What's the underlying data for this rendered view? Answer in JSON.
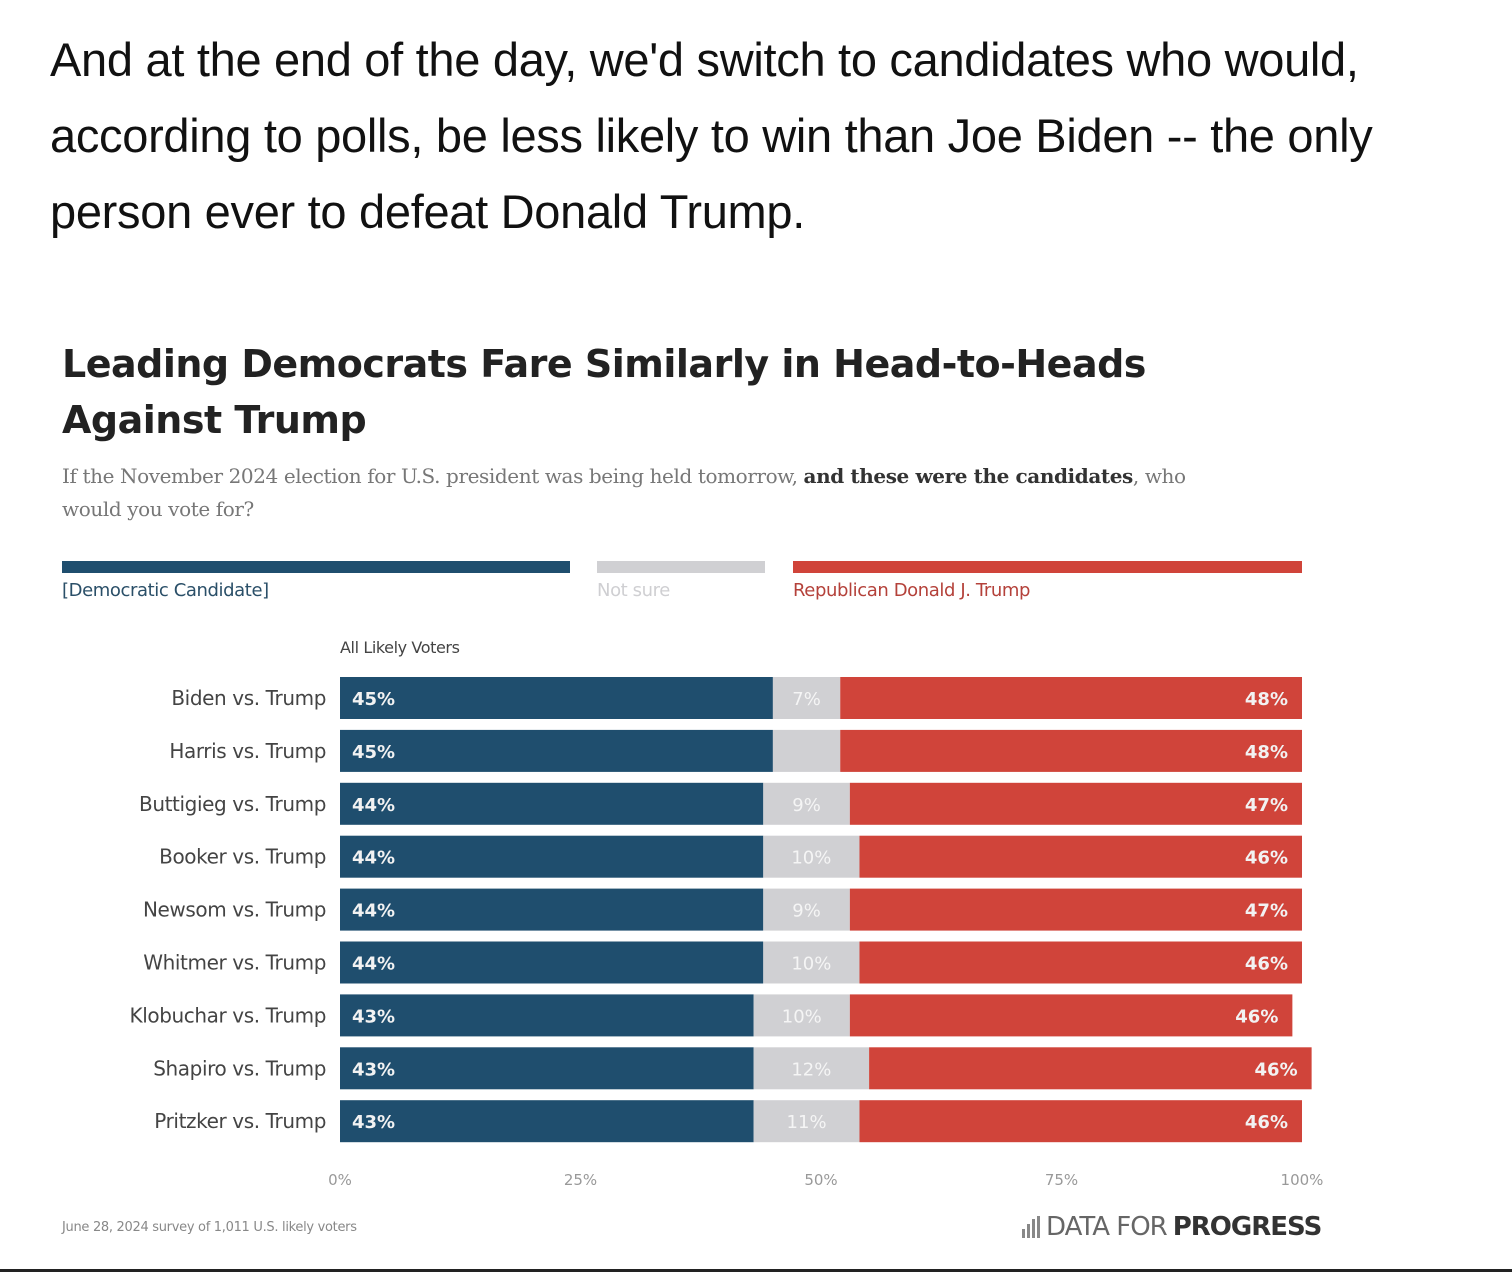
{
  "intro_text": "And at the end of the day, we'd switch to candidates who would, according to polls, be less likely to win than Joe Biden -- the only person ever to defeat Donald Trump.",
  "colors": {
    "democrat": "#1f4e6e",
    "not_sure": "#d0d0d3",
    "republican": "#d0443a"
  },
  "chart_data": {
    "type": "bar",
    "orientation": "horizontal-stacked-100",
    "title": "Leading Democrats Fare Similarly in Head-to-Heads Against Trump",
    "subtitle_plain_1": "If the November 2024 election for U.S. president was being held tomorrow, ",
    "subtitle_bold_1": "and these were the candidates",
    "subtitle_plain_2": ", who would you vote for?",
    "group_label": "All Likely Voters",
    "legend": [
      "[Democratic Candidate]",
      "Not sure",
      "Republican Donald J. Trump"
    ],
    "legend_placement": "top",
    "categories": [
      "Biden vs. Trump",
      "Harris vs. Trump",
      "Buttigieg vs. Trump",
      "Booker vs. Trump",
      "Newsom vs. Trump",
      "Whitmer vs. Trump",
      "Klobuchar vs. Trump",
      "Shapiro vs. Trump",
      "Pritzker vs. Trump"
    ],
    "series": [
      {
        "name": "[Democratic Candidate]",
        "values": [
          45,
          45,
          44,
          44,
          44,
          44,
          43,
          43,
          43
        ],
        "labels": [
          "45%",
          "45%",
          "44%",
          "44%",
          "44%",
          "44%",
          "43%",
          "43%",
          "43%"
        ]
      },
      {
        "name": "Not sure",
        "values": [
          7,
          7,
          9,
          10,
          9,
          10,
          10,
          12,
          11
        ],
        "labels": [
          "7%",
          "",
          "9%",
          "10%",
          "9%",
          "10%",
          "10%",
          "12%",
          "11%"
        ]
      },
      {
        "name": "Republican Donald J. Trump",
        "values": [
          48,
          48,
          47,
          46,
          47,
          46,
          46,
          46,
          46
        ],
        "labels": [
          "48%",
          "48%",
          "47%",
          "46%",
          "47%",
          "46%",
          "46%",
          "46%",
          "46%"
        ]
      }
    ],
    "xlim": [
      0,
      100
    ],
    "x_ticks": [
      "0%",
      "25%",
      "50%",
      "75%",
      "100%"
    ],
    "grid": false,
    "footnote": "June 28, 2024 survey of 1,011 U.S. likely voters",
    "source_brand_light": "DATA FOR",
    "source_brand_bold": "PROGRESS"
  }
}
